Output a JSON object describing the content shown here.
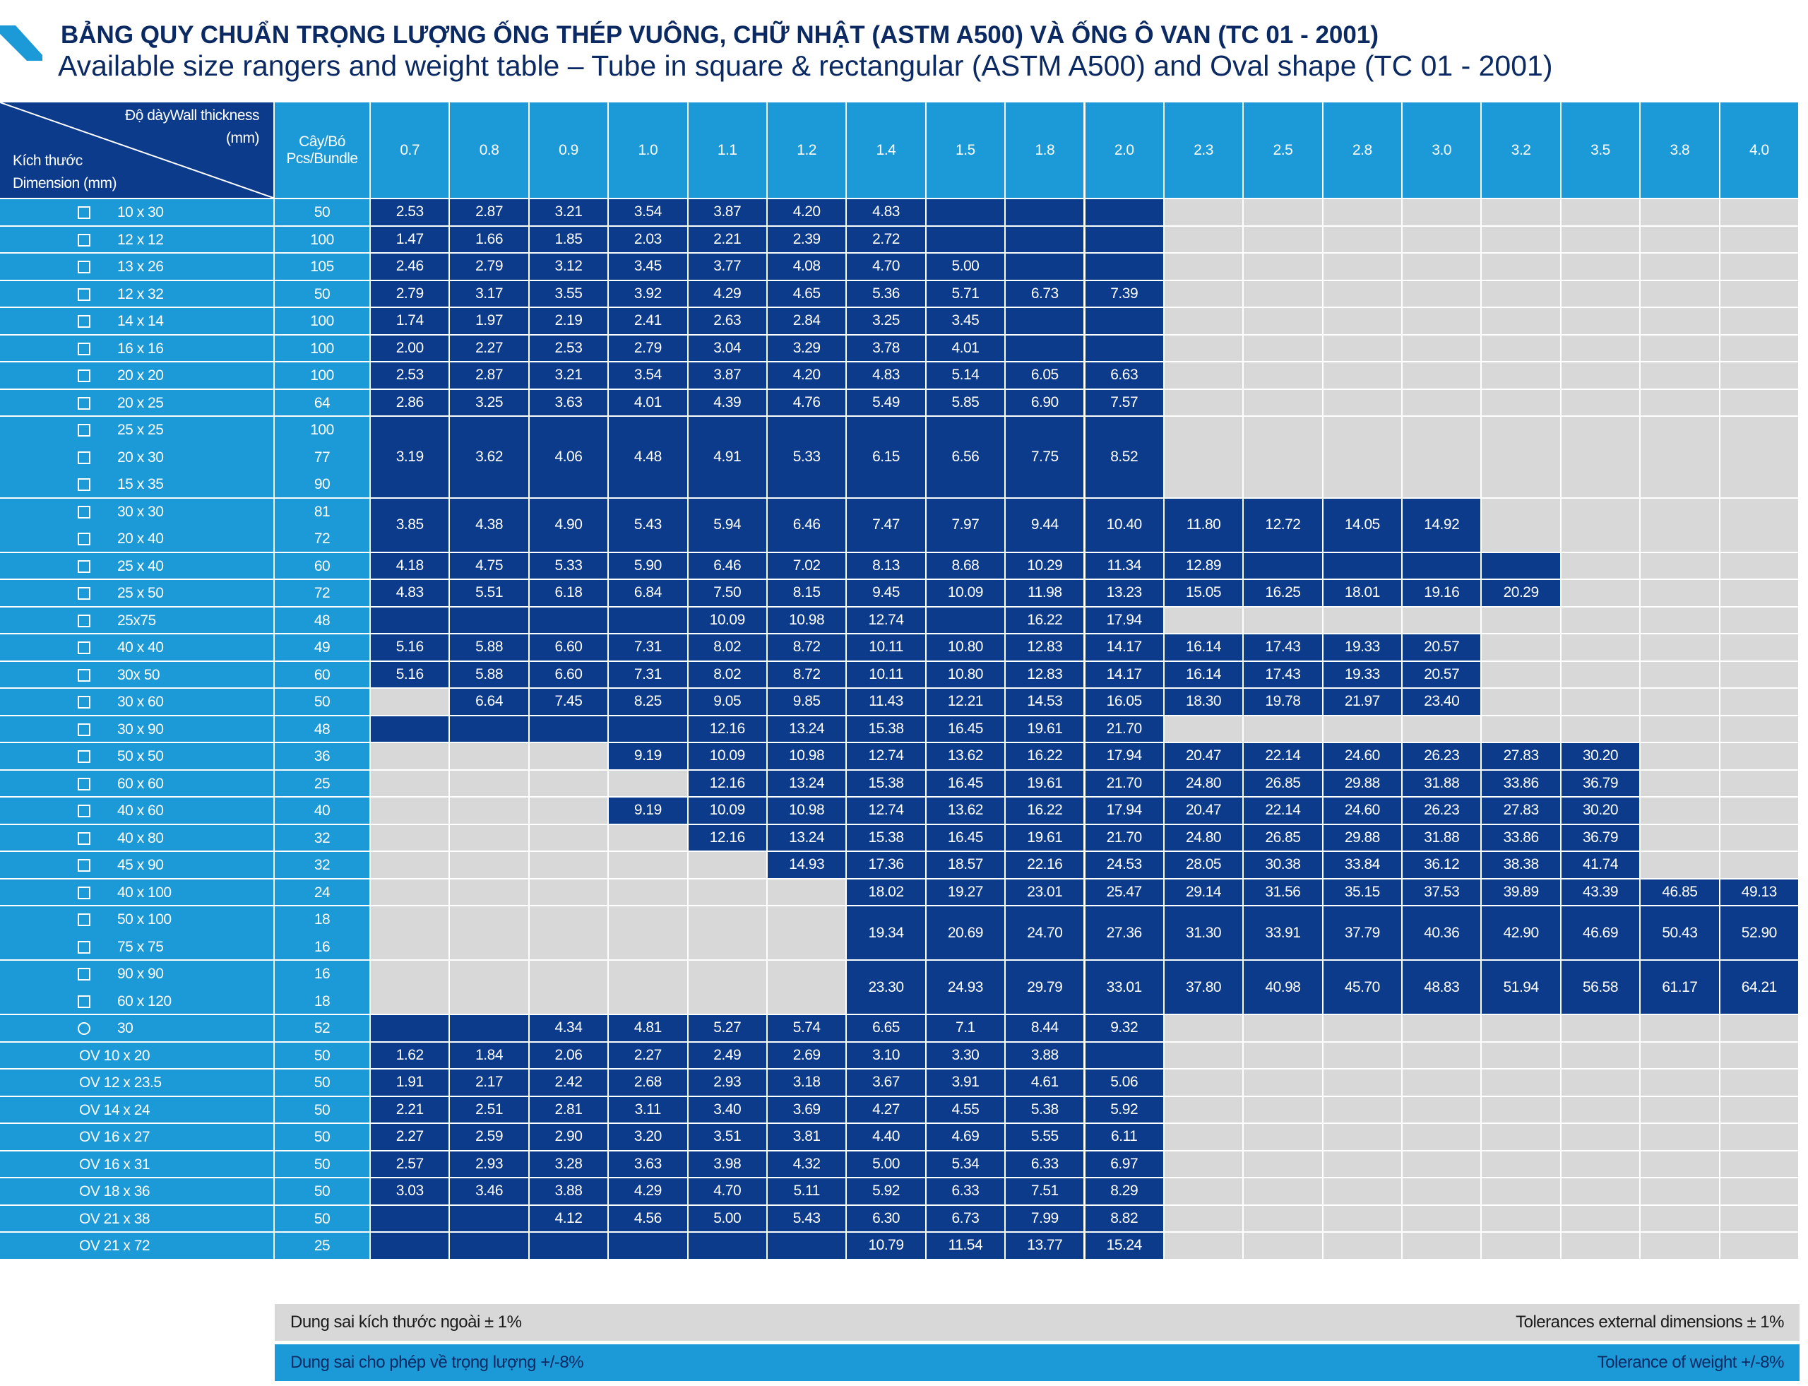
{
  "header": {
    "title": "BẢNG QUY CHUẨN TRỌNG LƯỢNG ỐNG THÉP VUÔNG, CHỮ NHẬT (ASTM A500) VÀ ỐNG Ô VAN (TC 01 - 2001)",
    "subtitle": "Available size rangers and weight table – Tube in square & rectangular (ASTM A500) and Oval shape (TC 01 - 2001)"
  },
  "table": {
    "corner": {
      "thickness": "Độ dàyWall thickness",
      "thickness_unit": "(mm)",
      "dimension_vi": "Kích thước",
      "dimension_en": "Dimension (mm)"
    },
    "bundle_header": [
      "Cây/Bó",
      "Pcs/Bundle"
    ],
    "thickness": [
      "0.7",
      "0.8",
      "0.9",
      "1.0",
      "1.1",
      "1.2",
      "1.4",
      "1.5",
      "1.8",
      "2.0",
      "2.3",
      "2.5",
      "2.8",
      "3.0",
      "3.2",
      "3.5",
      "3.8",
      "4.0"
    ],
    "rows": [
      {
        "dims": [
          "10 x 30"
        ],
        "bundles": [
          50
        ],
        "values": [
          "2.53",
          "2.87",
          "3.21",
          "3.54",
          "3.87",
          "4.20",
          "4.83",
          null,
          null,
          null,
          null,
          null,
          null,
          null,
          null,
          null,
          null,
          null
        ]
      },
      {
        "dims": [
          "12 x 12"
        ],
        "bundles": [
          100
        ],
        "values": [
          "1.47",
          "1.66",
          "1.85",
          "2.03",
          "2.21",
          "2.39",
          "2.72",
          null,
          null,
          null,
          null,
          null,
          null,
          null,
          null,
          null,
          null,
          null
        ]
      },
      {
        "dims": [
          "13 x 26"
        ],
        "bundles": [
          105
        ],
        "values": [
          "2.46",
          "2.79",
          "3.12",
          "3.45",
          "3.77",
          "4.08",
          "4.70",
          "5.00",
          null,
          null,
          null,
          null,
          null,
          null,
          null,
          null,
          null,
          null
        ]
      },
      {
        "dims": [
          "12 x 32"
        ],
        "bundles": [
          50
        ],
        "values": [
          "2.79",
          "3.17",
          "3.55",
          "3.92",
          "4.29",
          "4.65",
          "5.36",
          "5.71",
          "6.73",
          "7.39",
          null,
          null,
          null,
          null,
          null,
          null,
          null,
          null
        ]
      },
      {
        "dims": [
          "14 x 14"
        ],
        "bundles": [
          100
        ],
        "values": [
          "1.74",
          "1.97",
          "2.19",
          "2.41",
          "2.63",
          "2.84",
          "3.25",
          "3.45",
          null,
          null,
          null,
          null,
          null,
          null,
          null,
          null,
          null,
          null
        ]
      },
      {
        "dims": [
          "16 x 16"
        ],
        "bundles": [
          100
        ],
        "values": [
          "2.00",
          "2.27",
          "2.53",
          "2.79",
          "3.04",
          "3.29",
          "3.78",
          "4.01",
          null,
          null,
          null,
          null,
          null,
          null,
          null,
          null,
          null,
          null
        ]
      },
      {
        "dims": [
          "20 x 20"
        ],
        "bundles": [
          100
        ],
        "values": [
          "2.53",
          "2.87",
          "3.21",
          "3.54",
          "3.87",
          "4.20",
          "4.83",
          "5.14",
          "6.05",
          "6.63",
          null,
          null,
          null,
          null,
          null,
          null,
          null,
          null
        ]
      },
      {
        "dims": [
          "20 x 25"
        ],
        "bundles": [
          64
        ],
        "values": [
          "2.86",
          "3.25",
          "3.63",
          "4.01",
          "4.39",
          "4.76",
          "5.49",
          "5.85",
          "6.90",
          "7.57",
          null,
          null,
          null,
          null,
          null,
          null,
          null,
          null
        ]
      },
      {
        "dims": [
          "25 x 25",
          "20 x 30",
          "15 x 35"
        ],
        "bundles": [
          100,
          77,
          90
        ],
        "values": [
          "3.19",
          "3.62",
          "4.06",
          "4.48",
          "4.91",
          "5.33",
          "6.15",
          "6.56",
          "7.75",
          "8.52",
          null,
          null,
          null,
          null,
          null,
          null,
          null,
          null
        ]
      },
      {
        "dims": [
          "30 x 30",
          "20 x 40"
        ],
        "bundles": [
          81,
          72
        ],
        "values": [
          "3.85",
          "4.38",
          "4.90",
          "5.43",
          "5.94",
          "6.46",
          "7.47",
          "7.97",
          "9.44",
          "10.40",
          "11.80",
          "12.72",
          "14.05",
          "14.92",
          null,
          null,
          null,
          null
        ]
      },
      {
        "dims": [
          "25 x 40"
        ],
        "bundles": [
          60
        ],
        "values": [
          "4.18",
          "4.75",
          "5.33",
          "5.90",
          "6.46",
          "7.02",
          "8.13",
          "8.68",
          "10.29",
          "11.34",
          "12.89",
          null,
          null,
          null,
          null,
          null,
          null,
          null
        ]
      },
      {
        "dims": [
          "25 x 50"
        ],
        "bundles": [
          72
        ],
        "values": [
          "4.83",
          "5.51",
          "6.18",
          "6.84",
          "7.50",
          "8.15",
          "9.45",
          "10.09",
          "11.98",
          "13.23",
          "15.05",
          "16.25",
          "18.01",
          "19.16",
          "20.29",
          null,
          null,
          null
        ]
      },
      {
        "dims": [
          "25x75"
        ],
        "bundles": [
          48
        ],
        "values": [
          null,
          null,
          null,
          null,
          "10.09",
          "10.98",
          "12.74",
          null,
          "16.22",
          "17.94",
          null,
          null,
          null,
          null,
          null,
          null,
          null,
          null
        ]
      },
      {
        "dims": [
          "40 x 40"
        ],
        "bundles": [
          49
        ],
        "values": [
          "5.16",
          "5.88",
          "6.60",
          "7.31",
          "8.02",
          "8.72",
          "10.11",
          "10.80",
          "12.83",
          "14.17",
          "16.14",
          "17.43",
          "19.33",
          "20.57",
          null,
          null,
          null,
          null
        ]
      },
      {
        "dims": [
          "30x 50"
        ],
        "bundles": [
          60
        ],
        "values": [
          "5.16",
          "5.88",
          "6.60",
          "7.31",
          "8.02",
          "8.72",
          "10.11",
          "10.80",
          "12.83",
          "14.17",
          "16.14",
          "17.43",
          "19.33",
          "20.57",
          null,
          null,
          null,
          null
        ]
      },
      {
        "dims": [
          "30 x 60"
        ],
        "bundles": [
          50
        ],
        "values": [
          null,
          "6.64",
          "7.45",
          "8.25",
          "9.05",
          "9.85",
          "11.43",
          "12.21",
          "14.53",
          "16.05",
          "18.30",
          "19.78",
          "21.97",
          "23.40",
          null,
          null,
          null,
          null
        ]
      },
      {
        "dims": [
          "30 x 90"
        ],
        "bundles": [
          48
        ],
        "values": [
          null,
          null,
          null,
          null,
          "12.16",
          "13.24",
          "15.38",
          "16.45",
          "19.61",
          "21.70",
          null,
          null,
          null,
          null,
          null,
          null,
          null,
          null
        ]
      },
      {
        "dims": [
          "50 x 50"
        ],
        "bundles": [
          36
        ],
        "values": [
          null,
          null,
          null,
          "9.19",
          "10.09",
          "10.98",
          "12.74",
          "13.62",
          "16.22",
          "17.94",
          "20.47",
          "22.14",
          "24.60",
          "26.23",
          "27.83",
          "30.20",
          null,
          null
        ]
      },
      {
        "dims": [
          "60 x 60"
        ],
        "bundles": [
          25
        ],
        "values": [
          null,
          null,
          null,
          null,
          "12.16",
          "13.24",
          "15.38",
          "16.45",
          "19.61",
          "21.70",
          "24.80",
          "26.85",
          "29.88",
          "31.88",
          "33.86",
          "36.79",
          null,
          null
        ]
      },
      {
        "dims": [
          "40 x 60"
        ],
        "bundles": [
          40
        ],
        "values": [
          null,
          null,
          null,
          "9.19",
          "10.09",
          "10.98",
          "12.74",
          "13.62",
          "16.22",
          "17.94",
          "20.47",
          "22.14",
          "24.60",
          "26.23",
          "27.83",
          "30.20",
          null,
          null
        ]
      },
      {
        "dims": [
          "40 x 80"
        ],
        "bundles": [
          32
        ],
        "values": [
          null,
          null,
          null,
          null,
          "12.16",
          "13.24",
          "15.38",
          "16.45",
          "19.61",
          "21.70",
          "24.80",
          "26.85",
          "29.88",
          "31.88",
          "33.86",
          "36.79",
          null,
          null
        ]
      },
      {
        "dims": [
          "45 x 90"
        ],
        "bundles": [
          32
        ],
        "values": [
          null,
          null,
          null,
          null,
          null,
          "14.93",
          "17.36",
          "18.57",
          "22.16",
          "24.53",
          "28.05",
          "30.38",
          "33.84",
          "36.12",
          "38.38",
          "41.74",
          null,
          null
        ]
      },
      {
        "dims": [
          "40 x 100"
        ],
        "bundles": [
          24
        ],
        "values": [
          null,
          null,
          null,
          null,
          null,
          null,
          "18.02",
          "19.27",
          "23.01",
          "25.47",
          "29.14",
          "31.56",
          "35.15",
          "37.53",
          "39.89",
          "43.39",
          "46.85",
          "49.13"
        ]
      },
      {
        "dims": [
          "50 x 100",
          "75 x 75"
        ],
        "bundles": [
          18,
          16
        ],
        "values": [
          null,
          null,
          null,
          null,
          null,
          null,
          "19.34",
          "20.69",
          "24.70",
          "27.36",
          "31.30",
          "33.91",
          "37.79",
          "40.36",
          "42.90",
          "46.69",
          "50.43",
          "52.90"
        ]
      },
      {
        "dims": [
          "90 x 90",
          "60 x 120"
        ],
        "bundles": [
          16,
          18
        ],
        "values": [
          null,
          null,
          null,
          null,
          null,
          null,
          "23.30",
          "24.93",
          "29.79",
          "33.01",
          "37.80",
          "40.98",
          "45.70",
          "48.83",
          "51.94",
          "56.58",
          "61.17",
          "64.21"
        ]
      },
      {
        "dims": [
          "30"
        ],
        "bundles": [
          52
        ],
        "values": [
          null,
          null,
          "4.34",
          "4.81",
          "5.27",
          "5.74",
          "6.65",
          "7.1",
          "8.44",
          "9.32",
          null,
          null,
          null,
          null,
          null,
          null,
          null,
          null
        ]
      },
      {
        "dims": [
          "OV 10 x 20"
        ],
        "bundles": [
          50
        ],
        "values": [
          "1.62",
          "1.84",
          "2.06",
          "2.27",
          "2.49",
          "2.69",
          "3.10",
          "3.30",
          "3.88",
          null,
          null,
          null,
          null,
          null,
          null,
          null,
          null,
          null
        ]
      },
      {
        "dims": [
          "OV 12 x 23.5"
        ],
        "bundles": [
          50
        ],
        "values": [
          "1.91",
          "2.17",
          "2.42",
          "2.68",
          "2.93",
          "3.18",
          "3.67",
          "3.91",
          "4.61",
          "5.06",
          null,
          null,
          null,
          null,
          null,
          null,
          null,
          null
        ]
      },
      {
        "dims": [
          "OV 14 x 24"
        ],
        "bundles": [
          50
        ],
        "values": [
          "2.21",
          "2.51",
          "2.81",
          "3.11",
          "3.40",
          "3.69",
          "4.27",
          "4.55",
          "5.38",
          "5.92",
          null,
          null,
          null,
          null,
          null,
          null,
          null,
          null
        ]
      },
      {
        "dims": [
          "OV 16 x 27"
        ],
        "bundles": [
          50
        ],
        "values": [
          "2.27",
          "2.59",
          "2.90",
          "3.20",
          "3.51",
          "3.81",
          "4.40",
          "4.69",
          "5.55",
          "6.11",
          null,
          null,
          null,
          null,
          null,
          null,
          null,
          null
        ]
      },
      {
        "dims": [
          "OV 16 x 31"
        ],
        "bundles": [
          50
        ],
        "values": [
          "2.57",
          "2.93",
          "3.28",
          "3.63",
          "3.98",
          "4.32",
          "5.00",
          "5.34",
          "6.33",
          "6.97",
          null,
          null,
          null,
          null,
          null,
          null,
          null,
          null
        ]
      },
      {
        "dims": [
          "OV 18 x 36"
        ],
        "bundles": [
          50
        ],
        "values": [
          "3.03",
          "3.46",
          "3.88",
          "4.29",
          "4.70",
          "5.11",
          "5.92",
          "6.33",
          "7.51",
          "8.29",
          null,
          null,
          null,
          null,
          null,
          null,
          null,
          null
        ]
      },
      {
        "dims": [
          "OV 21 x 38"
        ],
        "bundles": [
          50
        ],
        "values": [
          null,
          null,
          "4.12",
          "4.56",
          "5.00",
          "5.43",
          "6.30",
          "6.73",
          "7.99",
          "8.82",
          null,
          null,
          null,
          null,
          null,
          null,
          null,
          null
        ]
      },
      {
        "dims": [
          "OV 21 x 72"
        ],
        "bundles": [
          25
        ],
        "values": [
          null,
          null,
          null,
          null,
          null,
          null,
          "10.79",
          "11.54",
          "13.77",
          "15.24",
          null,
          null,
          null,
          null,
          null,
          null,
          null,
          null
        ]
      }
    ]
  },
  "footer": {
    "dimension_vi": "Dung sai kích thước ngoài ± 1%",
    "dimension_en": "Tolerances external dimensions ± 1%",
    "weight_vi": "Dung sai cho phép về trọng lượng +/-8%",
    "weight_en": "Tolerance of weight +/-8%"
  }
}
